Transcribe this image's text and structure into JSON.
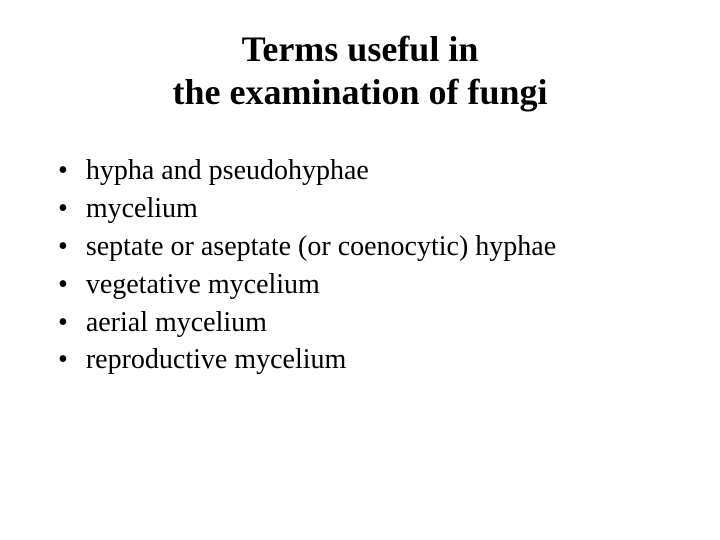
{
  "background_color": "#ffffff",
  "text_color": "#000000",
  "title": {
    "line1": "Terms useful in",
    "line2": "the examination of fungi",
    "font_size": 36,
    "font_weight": "bold",
    "font_family": "Times New Roman"
  },
  "bullets": {
    "marker": "•",
    "font_size": 28,
    "font_family": "Times New Roman",
    "items": [
      "hypha  and pseudohyphae",
      "mycelium",
      "septate or aseptate (or coenocytic) hyphae",
      "vegetative mycelium",
      "aerial mycelium",
      "reproductive mycelium"
    ]
  }
}
